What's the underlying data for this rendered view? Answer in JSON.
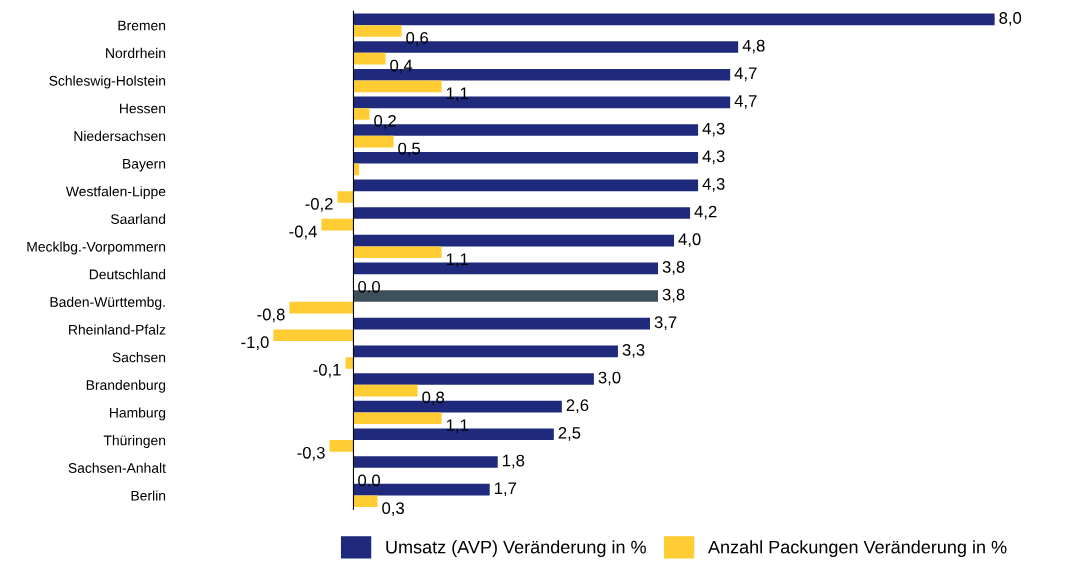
{
  "chart_data": {
    "type": "bar",
    "orientation": "horizontal",
    "categories": [
      "Bremen",
      "Nordrhein",
      "Schleswig-Holstein",
      "Hessen",
      "Niedersachsen",
      "Bayern",
      "Westfalen-Lippe",
      "Saarland",
      "Mecklbg.-Vorpommern",
      "Deutschland",
      "Baden-Württembg.",
      "Rheinland-Pfalz",
      "Sachsen",
      "Brandenburg",
      "Hamburg",
      "Thüringen",
      "Sachsen-Anhalt",
      "Berlin"
    ],
    "series": [
      {
        "name": "Umsatz (AVP) Veränderung in %",
        "color": "#1f2a7c",
        "colors": [
          "#1f2a7c",
          "#1f2a7c",
          "#1f2a7c",
          "#1f2a7c",
          "#1f2a7c",
          "#1f2a7c",
          "#1f2a7c",
          "#1f2a7c",
          "#1f2a7c",
          "#1f2a7c",
          "#3d4f5a",
          "#1f2a7c",
          "#1f2a7c",
          "#1f2a7c",
          "#1f2a7c",
          "#1f2a7c",
          "#1f2a7c",
          "#1f2a7c"
        ],
        "values": [
          8.0,
          4.8,
          4.7,
          4.7,
          4.3,
          4.3,
          4.3,
          4.2,
          4.0,
          3.8,
          3.8,
          3.7,
          3.3,
          3.0,
          2.6,
          2.5,
          1.8,
          1.7
        ],
        "value_labels": [
          "8,0",
          "4,8",
          "4,7",
          "4,7",
          "4,3",
          "4,3",
          "4,3",
          "4,2",
          "4,0",
          "3,8",
          "3,8",
          "3,7",
          "3,3",
          "3,0",
          "2,6",
          "2,5",
          "1,8",
          "1,7"
        ]
      },
      {
        "name": "Anzahl Packungen Veränderung in %",
        "color": "#ffcc33",
        "values": [
          0.6,
          0.4,
          1.1,
          0.2,
          0.5,
          0.07,
          -0.2,
          -0.4,
          1.1,
          0.0,
          -0.8,
          -1.0,
          -0.1,
          0.8,
          1.1,
          -0.3,
          0.0,
          0.3
        ],
        "value_labels": [
          "0,6",
          "0,4",
          "1,1",
          "0,2",
          "0,5",
          null,
          "-0,2",
          "-0,4",
          "1,1",
          "0.0",
          "-0,8",
          "-1,0",
          "-0,1",
          "0,8",
          "1,1",
          "-0,3",
          "0.0",
          "0,3"
        ]
      }
    ],
    "tick_labels": "y",
    "grid": false,
    "legend": "bottom"
  }
}
